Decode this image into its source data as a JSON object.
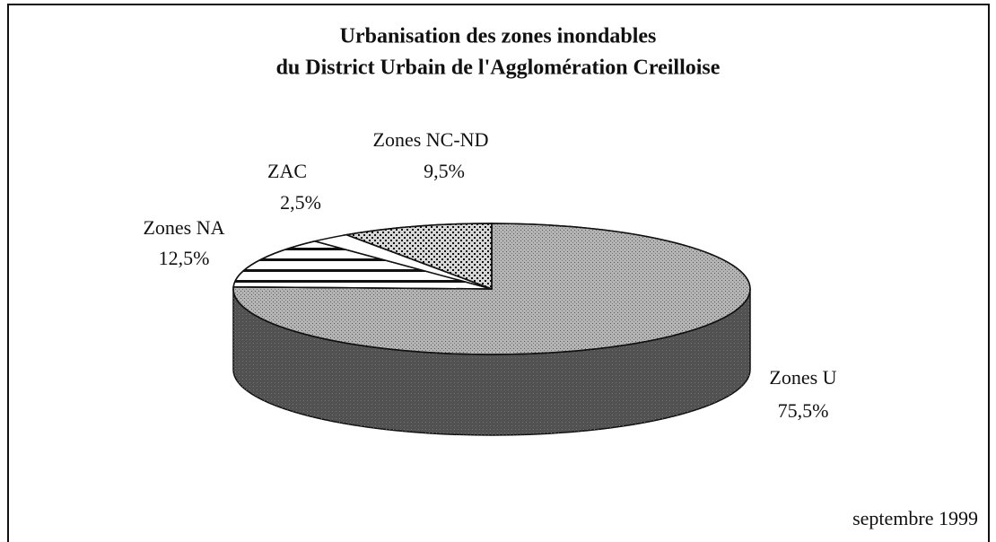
{
  "chart_data": {
    "type": "pie",
    "title": [
      "Urbanisation des zones inondables",
      "du District Urbain de l'Agglomération Creilloise"
    ],
    "categories": [
      "Zones U",
      "Zones NA",
      "ZAC",
      "Zones NC-ND"
    ],
    "values": [
      75.5,
      12.5,
      2.5,
      9.5
    ],
    "value_labels": [
      "75,5%",
      "12,5%",
      "2,5%",
      "9,5%"
    ],
    "colors": [
      "#b4b4b4",
      "#ffffff",
      "#ffffff",
      "#d8d8d8"
    ],
    "footnote": "septembre 1999"
  }
}
